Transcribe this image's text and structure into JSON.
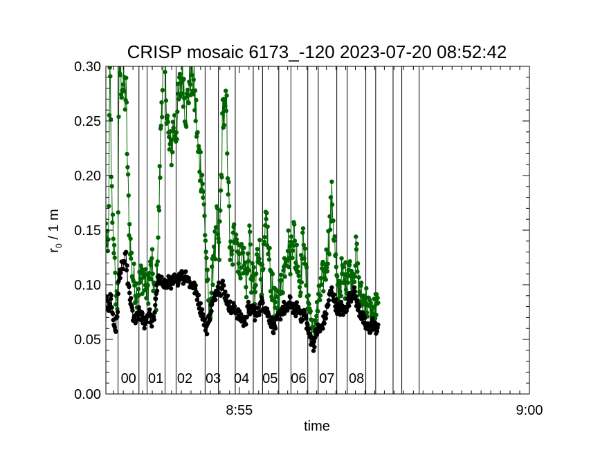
{
  "chart_data": {
    "type": "scatter",
    "title": "CRISP mosaic 6173_-120 2023-07-20 08:52:42",
    "xlabel": "time",
    "ylabel_main": "r",
    "ylabel_sub": "0",
    "ylabel_rest": " / 1 m",
    "x_unit": "minutes after 08:52:42",
    "xlim": [
      0,
      7.3
    ],
    "ylim": [
      0,
      0.3
    ],
    "yticks": [
      "0.00",
      "0.05",
      "0.10",
      "0.15",
      "0.20",
      "0.25",
      "0.30"
    ],
    "ytick_values": [
      0,
      0.05,
      0.1,
      0.15,
      0.2,
      0.25,
      0.3
    ],
    "xticks": [
      {
        "label": "8:55",
        "value": 2.3
      },
      {
        "label": "9:00",
        "value": 7.3
      }
    ],
    "segment_boundaries": [
      0.21,
      0.57,
      0.71,
      1.02,
      1.21,
      1.71,
      1.94,
      2.23,
      2.54,
      2.7,
      2.98,
      3.19,
      3.48,
      3.66,
      3.98,
      4.16,
      4.48,
      4.65,
      4.95,
      5.1,
      5.4
    ],
    "segment_labels": [
      {
        "label": "00",
        "value": 0.39
      },
      {
        "label": "01",
        "value": 0.86
      },
      {
        "label": "02",
        "value": 1.36
      },
      {
        "label": "03",
        "value": 1.85
      },
      {
        "label": "04",
        "value": 2.34
      },
      {
        "label": "05",
        "value": 2.83
      },
      {
        "label": "06",
        "value": 3.32
      },
      {
        "label": "07",
        "value": 3.81
      },
      {
        "label": "08",
        "value": 4.32
      }
    ],
    "series": [
      {
        "name": "r0 (green)",
        "color": "#006400",
        "knots": [
          [
            0.0,
            0.15
          ],
          [
            0.04,
            0.12
          ],
          [
            0.07,
            0.3
          ],
          [
            0.1,
            0.18
          ],
          [
            0.13,
            0.15
          ],
          [
            0.16,
            0.1
          ],
          [
            0.2,
            0.08
          ],
          [
            0.23,
            0.3
          ],
          [
            0.27,
            0.29
          ],
          [
            0.31,
            0.28
          ],
          [
            0.35,
            0.27
          ],
          [
            0.38,
            0.19
          ],
          [
            0.4,
            0.16
          ],
          [
            0.43,
            0.13
          ],
          [
            0.46,
            0.11
          ],
          [
            0.5,
            0.1
          ],
          [
            0.53,
            0.095
          ],
          [
            0.57,
            0.1
          ],
          [
            0.6,
            0.105
          ],
          [
            0.64,
            0.11
          ],
          [
            0.68,
            0.1
          ],
          [
            0.72,
            0.095
          ],
          [
            0.76,
            0.11
          ],
          [
            0.8,
            0.115
          ],
          [
            0.84,
            0.09
          ],
          [
            0.86,
            0.08
          ],
          [
            0.88,
            0.11
          ],
          [
            0.91,
            0.16
          ],
          [
            0.94,
            0.22
          ],
          [
            0.96,
            0.27
          ],
          [
            0.99,
            0.3
          ],
          [
            1.02,
            0.29
          ],
          [
            1.05,
            0.27
          ],
          [
            1.08,
            0.23
          ],
          [
            1.11,
            0.22
          ],
          [
            1.14,
            0.23
          ],
          [
            1.17,
            0.25
          ],
          [
            1.2,
            0.24
          ],
          [
            1.24,
            0.26
          ],
          [
            1.28,
            0.28
          ],
          [
            1.32,
            0.3
          ],
          [
            1.36,
            0.27
          ],
          [
            1.4,
            0.26
          ],
          [
            1.44,
            0.29
          ],
          [
            1.48,
            0.3
          ],
          [
            1.52,
            0.28
          ],
          [
            1.56,
            0.25
          ],
          [
            1.59,
            0.22
          ],
          [
            1.63,
            0.21
          ],
          [
            1.66,
            0.2
          ],
          [
            1.69,
            0.17
          ],
          [
            1.72,
            0.14
          ],
          [
            1.75,
            0.1
          ],
          [
            1.78,
            0.07
          ],
          [
            1.81,
            0.09
          ],
          [
            1.84,
            0.11
          ],
          [
            1.86,
            0.14
          ],
          [
            1.89,
            0.13
          ],
          [
            1.92,
            0.16
          ],
          [
            1.95,
            0.12
          ],
          [
            1.99,
            0.2
          ],
          [
            2.02,
            0.27
          ],
          [
            2.05,
            0.25
          ],
          [
            2.08,
            0.26
          ],
          [
            2.11,
            0.19
          ],
          [
            2.14,
            0.13
          ],
          [
            2.17,
            0.12
          ],
          [
            2.2,
            0.14
          ],
          [
            2.24,
            0.16
          ],
          [
            2.27,
            0.13
          ],
          [
            2.31,
            0.12
          ],
          [
            2.35,
            0.13
          ],
          [
            2.39,
            0.12
          ],
          [
            2.42,
            0.1
          ],
          [
            2.45,
            0.12
          ],
          [
            2.48,
            0.14
          ],
          [
            2.51,
            0.1
          ],
          [
            2.54,
            0.11
          ],
          [
            2.57,
            0.08
          ],
          [
            2.6,
            0.12
          ],
          [
            2.64,
            0.14
          ],
          [
            2.67,
            0.11
          ],
          [
            2.7,
            0.1
          ],
          [
            2.73,
            0.13
          ],
          [
            2.77,
            0.16
          ],
          [
            2.8,
            0.13
          ],
          [
            2.84,
            0.11
          ],
          [
            2.88,
            0.09
          ],
          [
            2.92,
            0.08
          ],
          [
            2.95,
            0.08
          ],
          [
            2.99,
            0.09
          ],
          [
            3.03,
            0.1
          ],
          [
            3.06,
            0.11
          ],
          [
            3.1,
            0.13
          ],
          [
            3.14,
            0.14
          ],
          [
            3.17,
            0.12
          ],
          [
            3.2,
            0.14
          ],
          [
            3.24,
            0.15
          ],
          [
            3.27,
            0.12
          ],
          [
            3.3,
            0.13
          ],
          [
            3.34,
            0.1
          ],
          [
            3.38,
            0.12
          ],
          [
            3.41,
            0.15
          ],
          [
            3.44,
            0.11
          ],
          [
            3.48,
            0.09
          ],
          [
            3.51,
            0.08
          ],
          [
            3.55,
            0.06
          ],
          [
            3.58,
            0.05
          ],
          [
            3.62,
            0.07
          ],
          [
            3.66,
            0.08
          ],
          [
            3.69,
            0.09
          ],
          [
            3.72,
            0.1
          ],
          [
            3.76,
            0.11
          ],
          [
            3.8,
            0.12
          ],
          [
            3.84,
            0.14
          ],
          [
            3.87,
            0.16
          ],
          [
            3.9,
            0.18
          ],
          [
            3.93,
            0.15
          ],
          [
            3.96,
            0.12
          ],
          [
            3.99,
            0.09
          ],
          [
            4.03,
            0.1
          ],
          [
            4.07,
            0.11
          ],
          [
            4.11,
            0.1
          ],
          [
            4.15,
            0.11
          ],
          [
            4.19,
            0.12
          ],
          [
            4.23,
            0.1
          ],
          [
            4.26,
            0.11
          ],
          [
            4.29,
            0.12
          ],
          [
            4.32,
            0.13
          ],
          [
            4.35,
            0.1
          ],
          [
            4.39,
            0.09
          ],
          [
            4.43,
            0.085
          ],
          [
            4.47,
            0.09
          ],
          [
            4.51,
            0.08
          ],
          [
            4.55,
            0.075
          ],
          [
            4.6,
            0.07
          ],
          [
            4.65,
            0.08
          ],
          [
            4.7,
            0.075
          ]
        ]
      },
      {
        "name": "r0 (black)",
        "color": "#000000",
        "knots": [
          [
            0.0,
            0.085
          ],
          [
            0.05,
            0.08
          ],
          [
            0.09,
            0.09
          ],
          [
            0.13,
            0.065
          ],
          [
            0.17,
            0.06
          ],
          [
            0.2,
            0.075
          ],
          [
            0.23,
            0.11
          ],
          [
            0.27,
            0.115
          ],
          [
            0.31,
            0.12
          ],
          [
            0.35,
            0.125
          ],
          [
            0.38,
            0.1
          ],
          [
            0.41,
            0.09
          ],
          [
            0.44,
            0.08
          ],
          [
            0.47,
            0.07
          ],
          [
            0.5,
            0.065
          ],
          [
            0.54,
            0.07
          ],
          [
            0.58,
            0.075
          ],
          [
            0.62,
            0.07
          ],
          [
            0.66,
            0.065
          ],
          [
            0.7,
            0.07
          ],
          [
            0.74,
            0.075
          ],
          [
            0.77,
            0.07
          ],
          [
            0.8,
            0.065
          ],
          [
            0.83,
            0.068
          ],
          [
            0.86,
            0.09
          ],
          [
            0.9,
            0.105
          ],
          [
            0.94,
            0.1
          ],
          [
            0.98,
            0.105
          ],
          [
            1.02,
            0.1
          ],
          [
            1.06,
            0.1
          ],
          [
            1.1,
            0.105
          ],
          [
            1.14,
            0.1
          ],
          [
            1.18,
            0.105
          ],
          [
            1.22,
            0.1
          ],
          [
            1.26,
            0.11
          ],
          [
            1.3,
            0.11
          ],
          [
            1.34,
            0.105
          ],
          [
            1.38,
            0.11
          ],
          [
            1.42,
            0.105
          ],
          [
            1.46,
            0.1
          ],
          [
            1.5,
            0.1
          ],
          [
            1.54,
            0.095
          ],
          [
            1.58,
            0.09
          ],
          [
            1.62,
            0.08
          ],
          [
            1.66,
            0.075
          ],
          [
            1.7,
            0.065
          ],
          [
            1.74,
            0.06
          ],
          [
            1.78,
            0.07
          ],
          [
            1.82,
            0.08
          ],
          [
            1.86,
            0.085
          ],
          [
            1.9,
            0.095
          ],
          [
            1.94,
            0.1
          ],
          [
            1.98,
            0.095
          ],
          [
            2.02,
            0.1
          ],
          [
            2.06,
            0.09
          ],
          [
            2.1,
            0.085
          ],
          [
            2.14,
            0.08
          ],
          [
            2.18,
            0.075
          ],
          [
            2.22,
            0.08
          ],
          [
            2.26,
            0.075
          ],
          [
            2.3,
            0.07
          ],
          [
            2.34,
            0.07
          ],
          [
            2.38,
            0.065
          ],
          [
            2.42,
            0.07
          ],
          [
            2.46,
            0.08
          ],
          [
            2.5,
            0.075
          ],
          [
            2.54,
            0.08
          ],
          [
            2.58,
            0.07
          ],
          [
            2.62,
            0.075
          ],
          [
            2.66,
            0.08
          ],
          [
            2.7,
            0.085
          ],
          [
            2.74,
            0.08
          ],
          [
            2.78,
            0.075
          ],
          [
            2.82,
            0.07
          ],
          [
            2.86,
            0.065
          ],
          [
            2.9,
            0.06
          ],
          [
            2.94,
            0.065
          ],
          [
            2.98,
            0.07
          ],
          [
            3.02,
            0.075
          ],
          [
            3.06,
            0.08
          ],
          [
            3.1,
            0.075
          ],
          [
            3.14,
            0.08
          ],
          [
            3.18,
            0.085
          ],
          [
            3.22,
            0.08
          ],
          [
            3.26,
            0.075
          ],
          [
            3.3,
            0.08
          ],
          [
            3.34,
            0.075
          ],
          [
            3.38,
            0.07
          ],
          [
            3.42,
            0.075
          ],
          [
            3.46,
            0.065
          ],
          [
            3.5,
            0.055
          ],
          [
            3.54,
            0.05
          ],
          [
            3.58,
            0.045
          ],
          [
            3.62,
            0.055
          ],
          [
            3.66,
            0.06
          ],
          [
            3.7,
            0.058
          ],
          [
            3.74,
            0.065
          ],
          [
            3.78,
            0.07
          ],
          [
            3.82,
            0.08
          ],
          [
            3.86,
            0.09
          ],
          [
            3.9,
            0.095
          ],
          [
            3.94,
            0.085
          ],
          [
            3.98,
            0.08
          ],
          [
            4.02,
            0.075
          ],
          [
            4.06,
            0.08
          ],
          [
            4.1,
            0.075
          ],
          [
            4.14,
            0.08
          ],
          [
            4.18,
            0.085
          ],
          [
            4.22,
            0.09
          ],
          [
            4.26,
            0.095
          ],
          [
            4.3,
            0.09
          ],
          [
            4.34,
            0.08
          ],
          [
            4.38,
            0.075
          ],
          [
            4.42,
            0.07
          ],
          [
            4.46,
            0.065
          ],
          [
            4.5,
            0.06
          ],
          [
            4.55,
            0.06
          ],
          [
            4.6,
            0.065
          ],
          [
            4.65,
            0.06
          ],
          [
            4.7,
            0.062
          ]
        ]
      }
    ]
  }
}
